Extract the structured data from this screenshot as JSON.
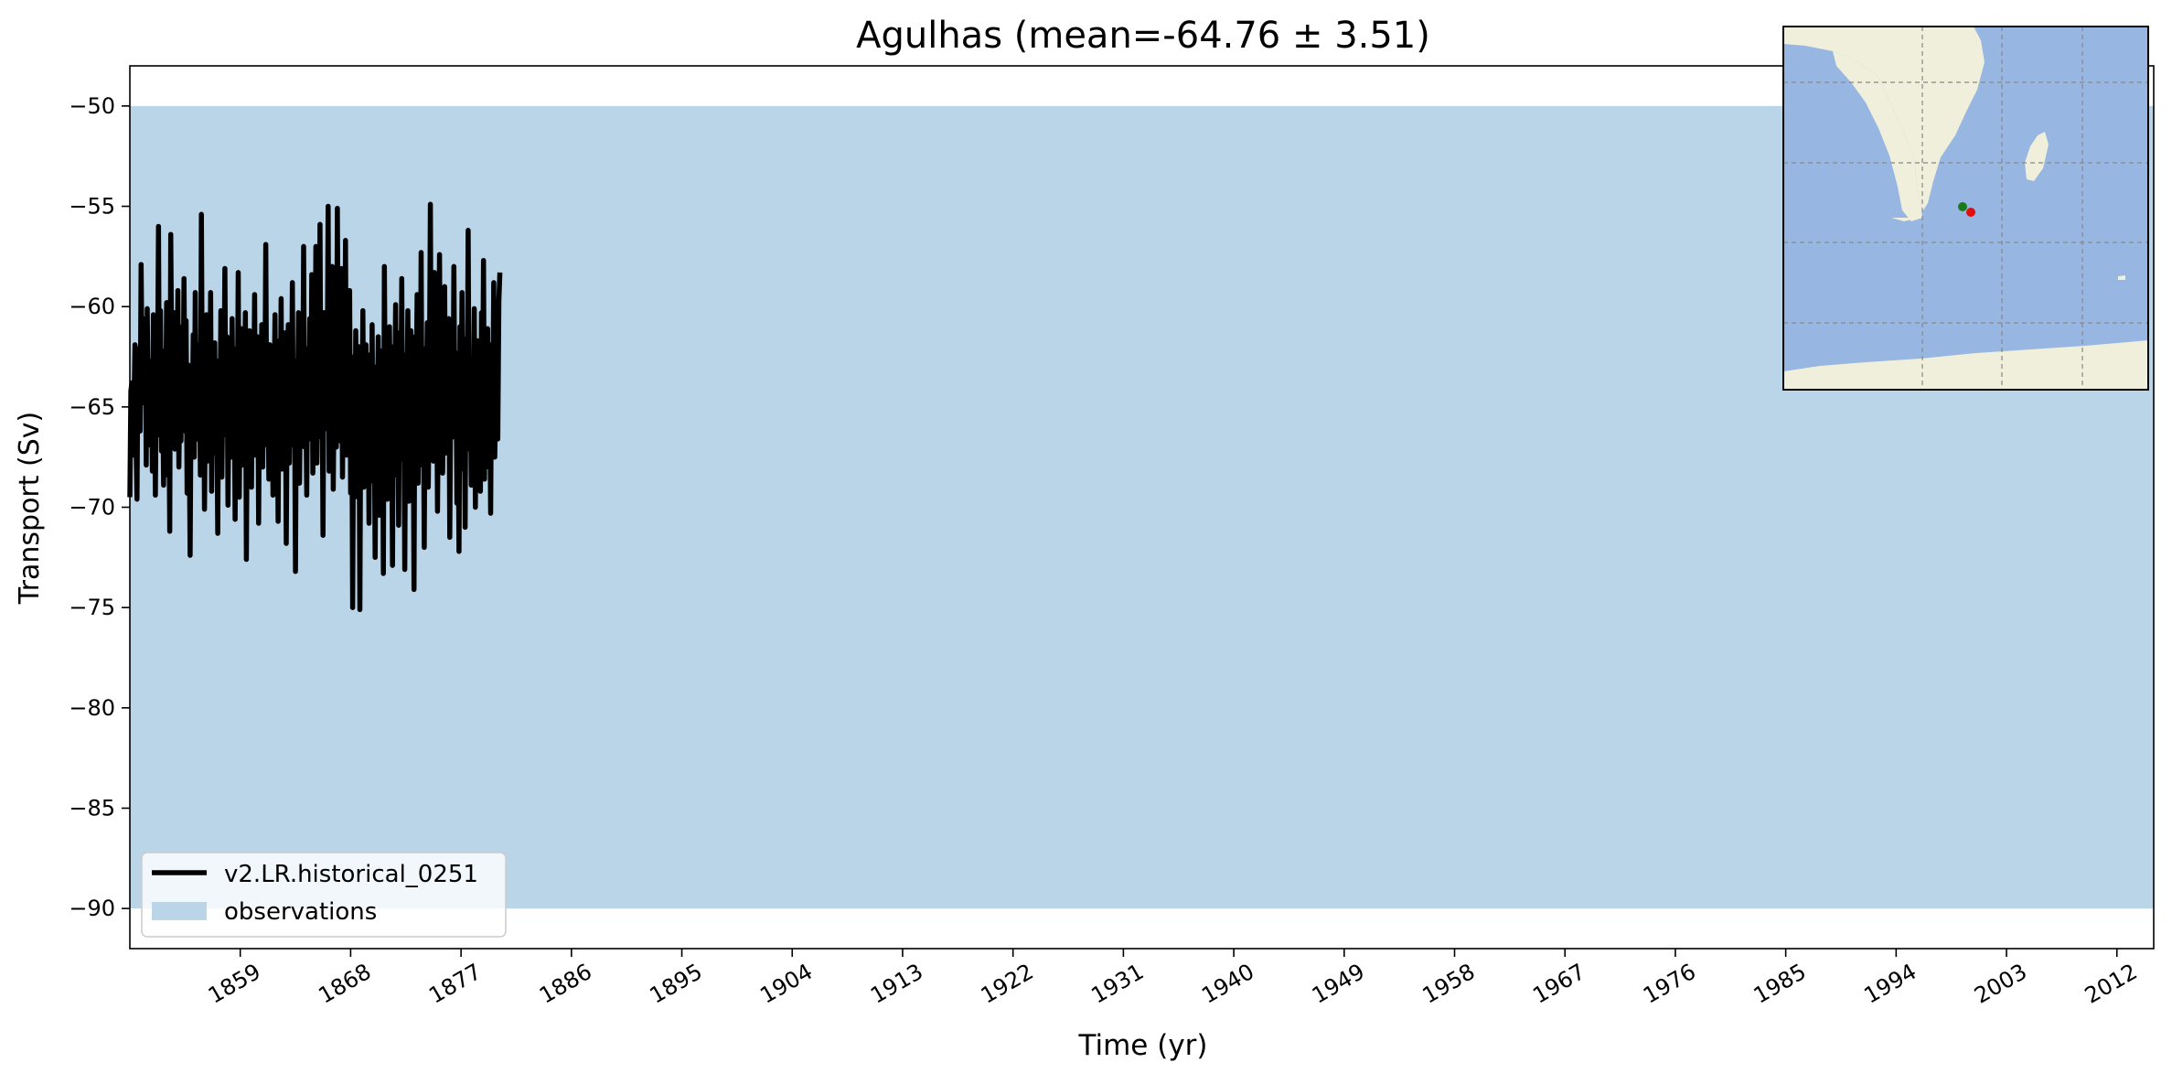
{
  "chart_data": {
    "type": "line",
    "title": "Agulhas (mean=-64.76 ± 3.51)",
    "xlabel": "Time (yr)",
    "ylabel": "Transport (Sv)",
    "xlim": [
      1850.0,
      2015.0
    ],
    "ylim": [
      -92.0,
      -48.0
    ],
    "x_ticks": [
      1859,
      1868,
      1877,
      1886,
      1895,
      1904,
      1913,
      1922,
      1931,
      1940,
      1949,
      1958,
      1967,
      1976,
      1985,
      1994,
      2003,
      2012
    ],
    "y_ticks": [
      -50,
      -55,
      -60,
      -65,
      -70,
      -75,
      -80,
      -85,
      -90
    ],
    "grid": false,
    "legend_position": "lower-left",
    "observations_band": {
      "name": "observations",
      "y_min": -90,
      "y_max": -50,
      "color": "#bad4e8"
    },
    "series": [
      {
        "name": "v2.LR.historical_0251",
        "color": "#000000",
        "mean": -64.76,
        "x_start": 1850.0,
        "x_step": 0.08333,
        "values": [
          -69.5,
          -64.2,
          -63.8,
          -67.4,
          -65.1,
          -61.9,
          -66.8,
          -69.6,
          -62.1,
          -64.5,
          -66.2,
          -57.9,
          -63.4,
          -60.6,
          -64.8,
          -61.2,
          -67.9,
          -60.1,
          -65.3,
          -63.0,
          -66.9,
          -62.7,
          -68.2,
          -60.4,
          -64.1,
          -69.4,
          -62.8,
          -63.9,
          -56.0,
          -66.4,
          -60.2,
          -67.2,
          -63.5,
          -68.9,
          -62.2,
          -65.9,
          -59.8,
          -68.4,
          -64.0,
          -71.2,
          -56.4,
          -63.1,
          -66.8,
          -60.3,
          -67.1,
          -62.5,
          -64.6,
          -59.2,
          -68.0,
          -63.8,
          -66.7,
          -61.0,
          -65.5,
          -58.6,
          -66.2,
          -60.7,
          -69.3,
          -62.9,
          -66.1,
          -72.4,
          -63.2,
          -65.7,
          -61.4,
          -67.5,
          -59.3,
          -65.2,
          -66.6,
          -63.7,
          -61.9,
          -68.4,
          -55.4,
          -66.0,
          -62.3,
          -70.1,
          -64.5,
          -60.4,
          -67.7,
          -63.1,
          -65.8,
          -59.3,
          -69.2,
          -62.0,
          -65.5,
          -61.8,
          -67.3,
          -64.9,
          -71.3,
          -62.7,
          -66.9,
          -60.2,
          -68.5,
          -63.6,
          -65.1,
          -58.1,
          -66.4,
          -61.5,
          -69.9,
          -64.2,
          -62.8,
          -67.5,
          -60.6,
          -65.9,
          -63.3,
          -70.6,
          -62.1,
          -66.2,
          -58.3,
          -69.5,
          -64.6,
          -61.1,
          -67.9,
          -63.9,
          -65.4,
          -60.3,
          -72.6,
          -63.8,
          -66.7,
          -61.2,
          -64.3,
          -69.0,
          -62.6,
          -65.8,
          -59.4,
          -67.4,
          -64.1,
          -61.5,
          -70.8,
          -63.0,
          -66.6,
          -60.9,
          -68.0,
          -62.4,
          -65.2,
          -56.9,
          -66.9,
          -63.5,
          -68.6,
          -61.9,
          -65.0,
          -62.2,
          -69.4,
          -64.8,
          -60.4,
          -67.2,
          -63.4,
          -70.7,
          -61.7,
          -65.8,
          -59.6,
          -68.1,
          -63.9,
          -66.5,
          -61.3,
          -71.8,
          -64.4,
          -60.9,
          -67.8,
          -62.4,
          -65.6,
          -58.8,
          -66.9,
          -63.1,
          -73.2,
          -62.7,
          -65.4,
          -60.3,
          -68.8,
          -64.0,
          -61.6,
          -66.2,
          -57.0,
          -67.0,
          -63.6,
          -69.4,
          -62.1,
          -65.9,
          -60.6,
          -66.6,
          -58.4,
          -68.3,
          -63.7,
          -64.9,
          -57.0,
          -67.8,
          -62.6,
          -65.3,
          -55.9,
          -66.5,
          -62.9,
          -71.4,
          -60.3,
          -66.1,
          -63.5,
          -64.7,
          -55.0,
          -68.2,
          -62.0,
          -65.6,
          -58.0,
          -69.1,
          -63.3,
          -61.4,
          -67.0,
          -55.1,
          -64.4,
          -60.9,
          -66.7,
          -58.1,
          -68.5,
          -62.6,
          -65.1,
          -56.7,
          -67.4,
          -61.8,
          -64.8,
          -59.2,
          -69.3,
          -62.5,
          -75.0,
          -63.9,
          -68.5,
          -61.2,
          -66.3,
          -69.5,
          -62.0,
          -75.1,
          -63.6,
          -65.9,
          -60.2,
          -69.0,
          -64.2,
          -61.9,
          -67.4,
          -63.1,
          -70.8,
          -62.4,
          -66.5,
          -60.9,
          -68.7,
          -64.1,
          -72.5,
          -63.0,
          -65.7,
          -61.5,
          -70.4,
          -62.2,
          -66.8,
          -63.4,
          -73.3,
          -58.0,
          -65.9,
          -62.5,
          -69.6,
          -63.6,
          -61.0,
          -67.1,
          -64.8,
          -72.9,
          -62.0,
          -65.5,
          -59.9,
          -68.4,
          -63.8,
          -70.9,
          -61.3,
          -66.0,
          -58.6,
          -67.6,
          -63.5,
          -73.1,
          -62.4,
          -65.2,
          -60.2,
          -69.7,
          -64.3,
          -61.2,
          -66.9,
          -63.0,
          -74.1,
          -61.5,
          -65.3,
          -59.4,
          -68.8,
          -62.7,
          -66.1,
          -57.3,
          -67.9,
          -63.3,
          -72.0,
          -62.1,
          -65.5,
          -60.8,
          -69.0,
          -63.8,
          -54.9,
          -66.4,
          -61.9,
          -67.7,
          -58.3,
          -65.1,
          -62.5,
          -70.2,
          -63.6,
          -57.4,
          -66.9,
          -61.2,
          -68.3,
          -64.1,
          -59.0,
          -67.3,
          -62.8,
          -65.8,
          -60.6,
          -71.5,
          -63.9,
          -61.4,
          -66.5,
          -58.0,
          -65.7,
          -62.3,
          -69.8,
          -64.4,
          -72.2,
          -61.0,
          -66.4,
          -59.3,
          -68.1,
          -63.7,
          -71.0,
          -61.6,
          -65.9,
          -56.2,
          -67.1,
          -62.6,
          -68.9,
          -63.1,
          -65.3,
          -60.1,
          -70.0,
          -64.7,
          -61.7,
          -66.8,
          -63.2,
          -69.2,
          -60.3,
          -66.0,
          -57.7,
          -68.6,
          -62.4,
          -65.8,
          -61.1,
          -68.0,
          -63.6,
          -70.3,
          -61.9,
          -65.1,
          -58.8,
          -67.5,
          -64.3,
          -62.0,
          -66.6,
          -59.7,
          -58.3
        ]
      }
    ]
  },
  "inset_map": {
    "land_color": "#efefdc",
    "ocean_color": "#97b6e1",
    "markers": [
      {
        "color": "#1a7a1a"
      },
      {
        "color": "#e01010"
      }
    ]
  }
}
